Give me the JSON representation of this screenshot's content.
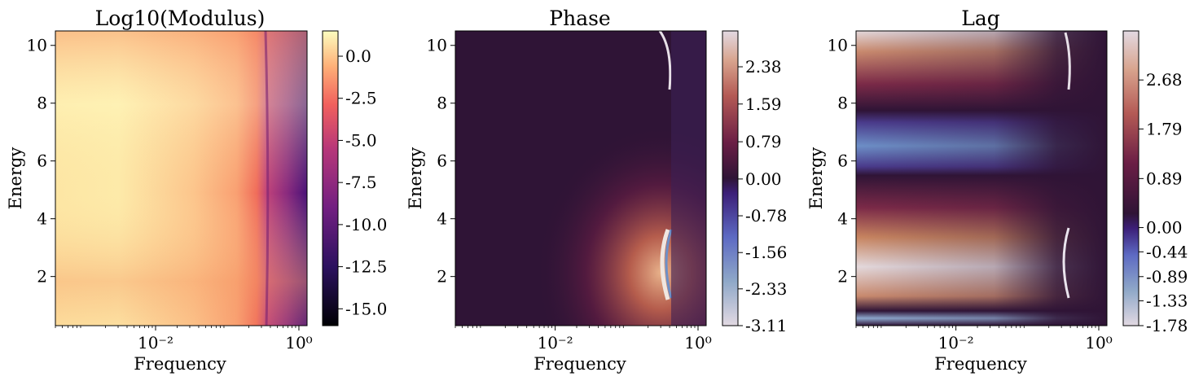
{
  "chart_data": [
    {
      "type": "heatmap",
      "title": "Log10(Modulus)",
      "xlabel": "Frequency",
      "ylabel": "Energy",
      "x_scale": "log",
      "x_ticks": [
        "10⁻²",
        "10⁰"
      ],
      "y_ticks": [
        2,
        4,
        6,
        8,
        10
      ],
      "xlim": [
        0.0004,
        1.3
      ],
      "ylim": [
        0.3,
        10.5
      ],
      "colormap": "magma",
      "colorbar_ticks": [
        "0.0",
        "-2.5",
        "-5.0",
        "-7.5",
        "-10.0",
        "-12.5",
        "-15.0"
      ],
      "colorbar_range": [
        -16.0,
        1.5
      ]
    },
    {
      "type": "heatmap",
      "title": "Phase",
      "xlabel": "Frequency",
      "ylabel": "Energy",
      "x_scale": "log",
      "x_ticks": [
        "10⁻²",
        "10⁰"
      ],
      "y_ticks": [
        2,
        4,
        6,
        8,
        10
      ],
      "xlim": [
        0.0004,
        1.3
      ],
      "ylim": [
        0.3,
        10.5
      ],
      "colormap": "twilight",
      "colorbar_ticks": [
        "2.38",
        "1.59",
        "0.79",
        "0.00",
        "-0.78",
        "-1.56",
        "-2.33",
        "-3.11"
      ],
      "colorbar_range": [
        -3.11,
        3.14
      ]
    },
    {
      "type": "heatmap",
      "title": "Lag",
      "xlabel": "Frequency",
      "ylabel": "Energy",
      "x_scale": "log",
      "x_ticks": [
        "10⁻²",
        "10⁰"
      ],
      "y_ticks": [
        2,
        4,
        6,
        8,
        10
      ],
      "xlim": [
        0.0004,
        1.3
      ],
      "ylim": [
        0.3,
        10.5
      ],
      "colormap": "twilight",
      "colorbar_ticks": [
        "2.68",
        "1.79",
        "0.89",
        "0.00",
        "-0.44",
        "-0.89",
        "-1.33",
        "-1.78"
      ],
      "colorbar_range": [
        -1.78,
        3.57
      ]
    }
  ]
}
